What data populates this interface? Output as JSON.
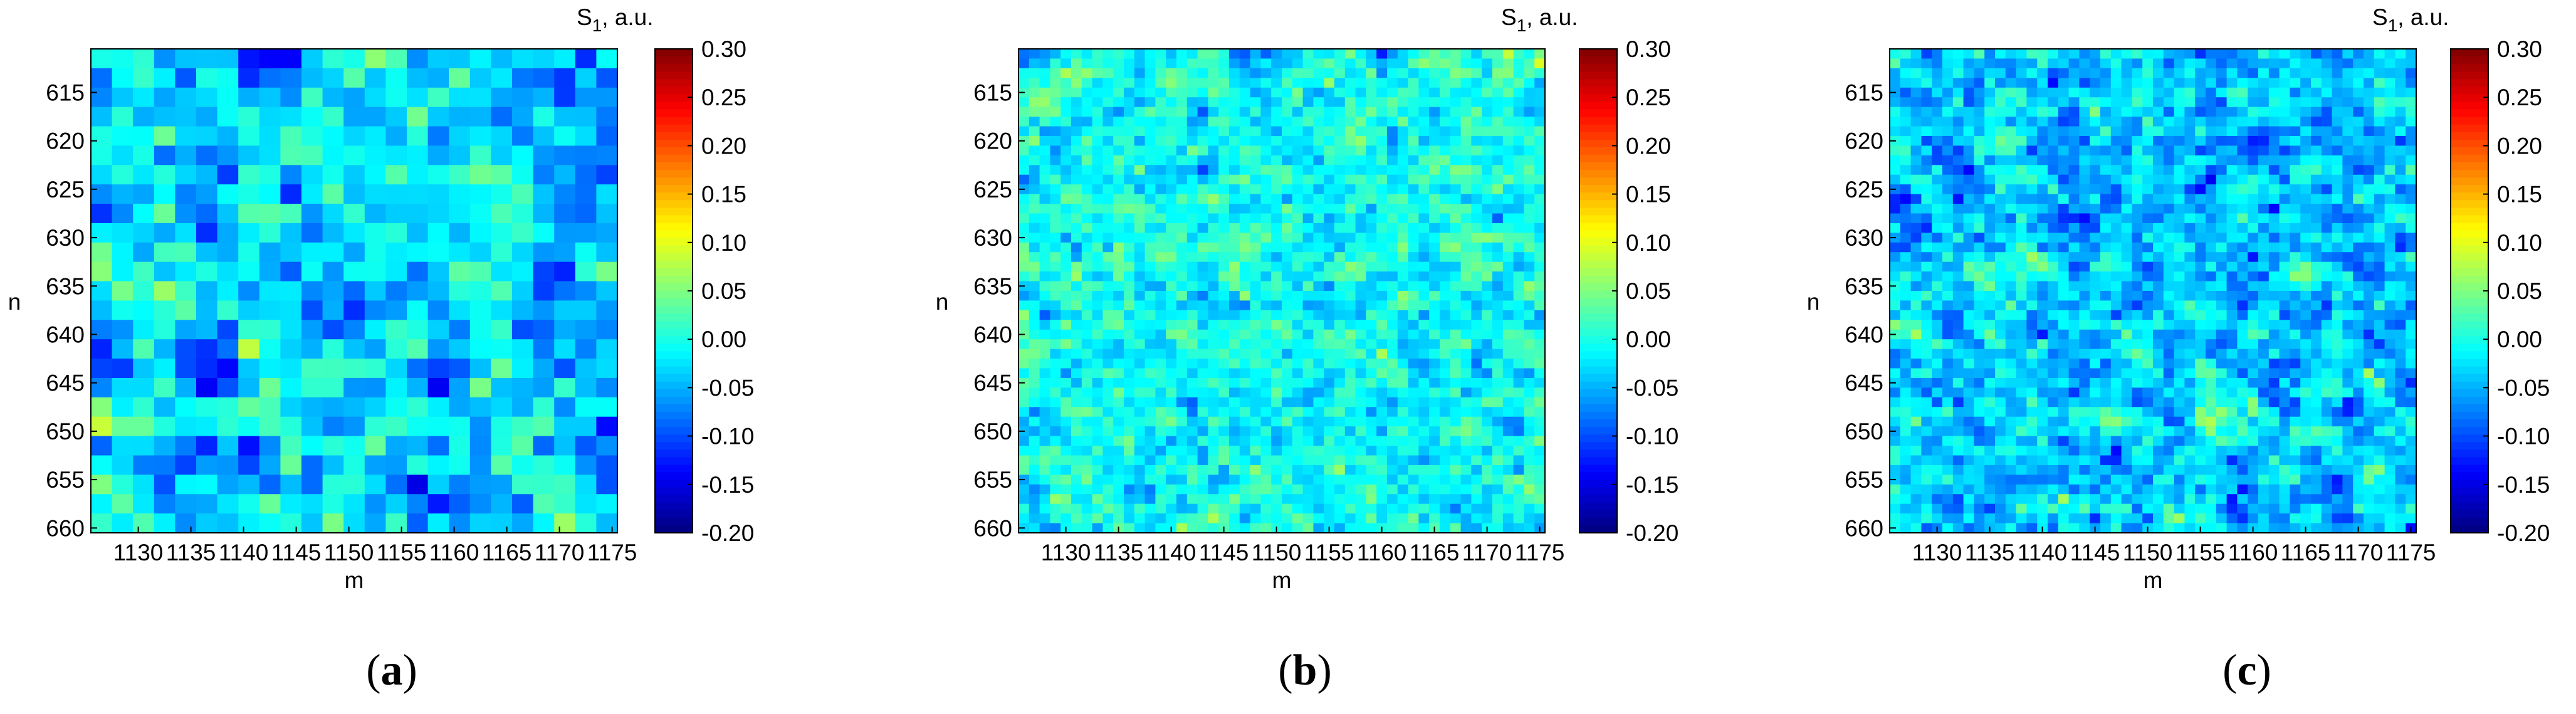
{
  "chart_data": [
    {
      "type": "heatmap",
      "panel_label": "a",
      "xlabel": "m",
      "ylabel": "n",
      "colorbar_title": "S",
      "colorbar_title_sub": "1",
      "colorbar_title_unit": ", a.u.",
      "x_range": [
        1126,
        1175
      ],
      "y_range": [
        611,
        660
      ],
      "x_ticks": [
        "1130",
        "1135",
        "1140",
        "1145",
        "1150",
        "1155",
        "1160",
        "1165",
        "1170",
        "1175"
      ],
      "y_ticks": [
        "615",
        "620",
        "625",
        "630",
        "635",
        "640",
        "645",
        "650",
        "655",
        "660"
      ],
      "colorbar_ticks": [
        "0.30",
        "0.25",
        "0.20",
        "0.15",
        "0.10",
        "0.05",
        "0.00",
        "-0.05",
        "-0.10",
        "-0.15",
        "-0.20"
      ],
      "clim": [
        -0.2,
        0.3
      ],
      "colormap": "jet",
      "grid_size": [
        25,
        25
      ],
      "value_summary": {
        "typical_mean": -0.03,
        "spread": 0.05
      },
      "seed": 11
    },
    {
      "type": "heatmap",
      "panel_label": "b",
      "xlabel": "m",
      "ylabel": "n",
      "colorbar_title": "S",
      "colorbar_title_sub": "1",
      "colorbar_title_unit": ", a.u.",
      "x_range": [
        1126,
        1175
      ],
      "y_range": [
        611,
        660
      ],
      "x_ticks": [
        "1130",
        "1135",
        "1140",
        "1145",
        "1150",
        "1155",
        "1160",
        "1165",
        "1170",
        "1175"
      ],
      "y_ticks": [
        "615",
        "620",
        "625",
        "630",
        "635",
        "640",
        "645",
        "650",
        "655",
        "660"
      ],
      "colorbar_ticks": [
        "0.30",
        "0.25",
        "0.20",
        "0.15",
        "0.10",
        "0.05",
        "0.00",
        "-0.05",
        "-0.10",
        "-0.15",
        "-0.20"
      ],
      "clim": [
        -0.2,
        0.3
      ],
      "colormap": "jet",
      "grid_size": [
        50,
        50
      ],
      "value_summary": {
        "typical_mean": -0.01,
        "spread": 0.035
      },
      "seed": 23
    },
    {
      "type": "heatmap",
      "panel_label": "c",
      "xlabel": "m",
      "ylabel": "n",
      "colorbar_title": "S",
      "colorbar_title_sub": "1",
      "colorbar_title_unit": ", a.u.",
      "x_range": [
        1126,
        1175
      ],
      "y_range": [
        611,
        660
      ],
      "x_ticks": [
        "1130",
        "1135",
        "1140",
        "1145",
        "1150",
        "1155",
        "1160",
        "1165",
        "1170",
        "1175"
      ],
      "y_ticks": [
        "615",
        "620",
        "625",
        "630",
        "635",
        "640",
        "645",
        "650",
        "655",
        "660"
      ],
      "colorbar_ticks": [
        "0.30",
        "0.25",
        "0.20",
        "0.15",
        "0.10",
        "0.05",
        "0.00",
        "-0.05",
        "-0.10",
        "-0.15",
        "-0.20"
      ],
      "clim": [
        -0.2,
        0.3
      ],
      "colormap": "jet",
      "grid_size": [
        50,
        50
      ],
      "value_summary": {
        "typical_mean": -0.04,
        "spread": 0.04
      },
      "seed": 37
    }
  ],
  "captions": {
    "a_open": "(",
    "a": "a",
    "a_close": ")",
    "b_open": "(",
    "b": "b",
    "b_close": ")",
    "c_open": "(",
    "c": "c",
    "c_close": ")"
  }
}
